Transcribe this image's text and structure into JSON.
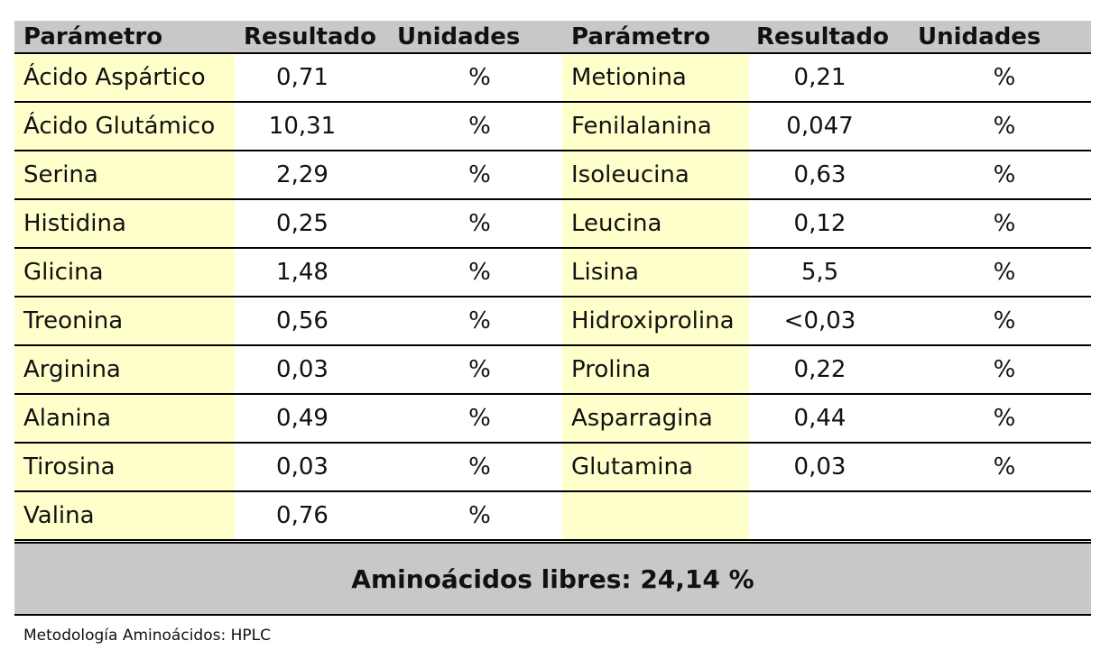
{
  "headers": {
    "left": {
      "parameter": "Parámetro",
      "result": "Resultado",
      "units": "Unidades"
    },
    "right": {
      "parameter": "Parámetro",
      "result": "Resultado",
      "units": "Unidades"
    }
  },
  "rows": [
    {
      "left": {
        "parameter": "Ácido Aspártico",
        "result": "0,71",
        "unit": "%"
      },
      "right": {
        "parameter": "Metionina",
        "result": "0,21",
        "unit": "%"
      }
    },
    {
      "left": {
        "parameter": "Ácido Glutámico",
        "result": "10,31",
        "unit": "%"
      },
      "right": {
        "parameter": "Fenilalanina",
        "result": "0,047",
        "unit": "%"
      }
    },
    {
      "left": {
        "parameter": "Serina",
        "result": "2,29",
        "unit": "%"
      },
      "right": {
        "parameter": "Isoleucina",
        "result": "0,63",
        "unit": "%"
      }
    },
    {
      "left": {
        "parameter": "Histidina",
        "result": "0,25",
        "unit": "%"
      },
      "right": {
        "parameter": "Leucina",
        "result": "0,12",
        "unit": "%"
      }
    },
    {
      "left": {
        "parameter": "Glicina",
        "result": "1,48",
        "unit": "%"
      },
      "right": {
        "parameter": "Lisina",
        "result": "5,5",
        "unit": "%"
      }
    },
    {
      "left": {
        "parameter": "Treonina",
        "result": "0,56",
        "unit": "%"
      },
      "right": {
        "parameter": "Hidroxiprolina",
        "result": "<0,03",
        "unit": "%"
      }
    },
    {
      "left": {
        "parameter": "Arginina",
        "result": "0,03",
        "unit": "%"
      },
      "right": {
        "parameter": "Prolina",
        "result": "0,22",
        "unit": "%"
      }
    },
    {
      "left": {
        "parameter": "Alanina",
        "result": "0,49",
        "unit": "%"
      },
      "right": {
        "parameter": "Asparragina",
        "result": "0,44",
        "unit": "%"
      }
    },
    {
      "left": {
        "parameter": "Tirosina",
        "result": "0,03",
        "unit": "%"
      },
      "right": {
        "parameter": "Glutamina",
        "result": "0,03",
        "unit": "%"
      }
    },
    {
      "left": {
        "parameter": "Valina",
        "result": "0,76",
        "unit": "%"
      },
      "right": {
        "parameter": "",
        "result": "",
        "unit": ""
      }
    }
  ],
  "summary": "Aminoácidos libres: 24,14 %",
  "footnote": "Metodología Aminoácidos: HPLC",
  "colors": {
    "header_bg": "#c8c8c8",
    "param_bg": "#ffffcc",
    "border": "#000000"
  }
}
